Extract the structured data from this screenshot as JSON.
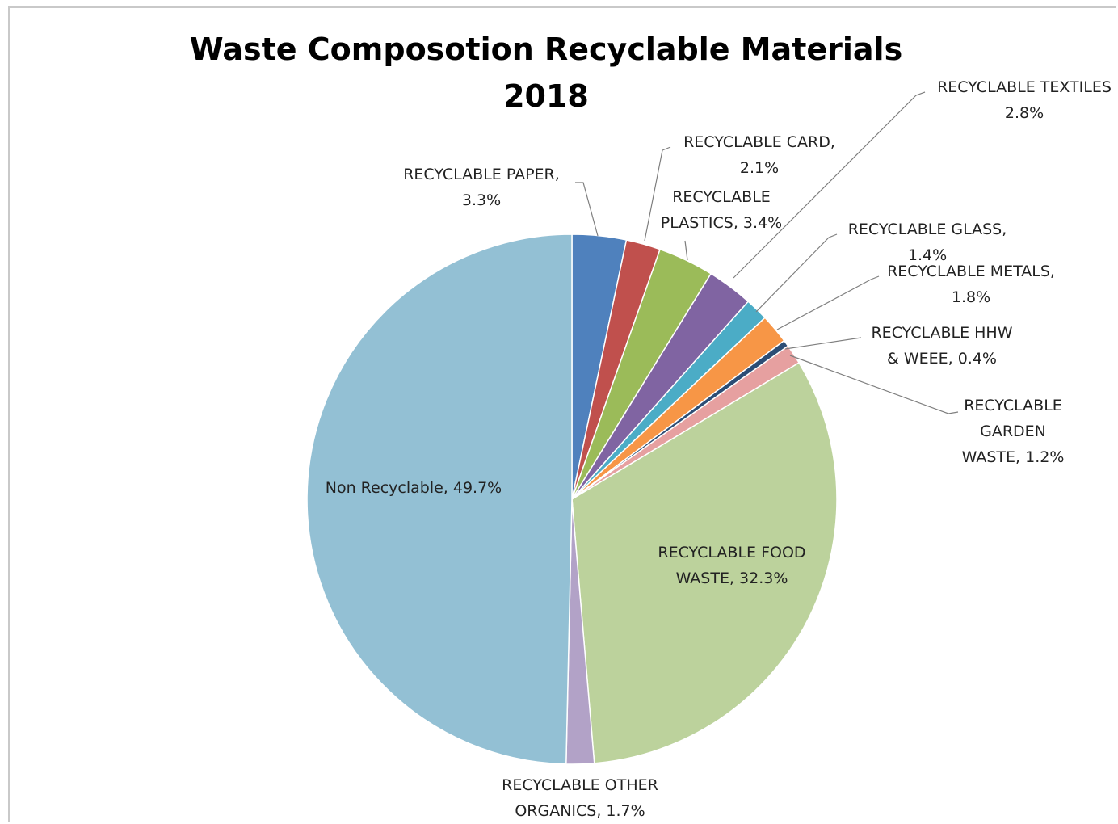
{
  "chart_data": {
    "type": "pie",
    "title": "Waste Composotion Recyclable Materials 2018",
    "title_lines": [
      "Waste Composotion Recyclable Materials",
      "2018"
    ],
    "slices": [
      {
        "name": "RECYCLABLE PAPER",
        "value": 3.3,
        "label_lines": [
          "RECYCLABLE PAPER,",
          "3.3%"
        ],
        "color": "#4f81bd"
      },
      {
        "name": "RECYCLABLE CARD",
        "value": 2.1,
        "label_lines": [
          "RECYCLABLE CARD,",
          "2.1%"
        ],
        "color": "#c0504d"
      },
      {
        "name": "RECYCLABLE PLASTICS",
        "value": 3.4,
        "label_lines": [
          "RECYCLABLE",
          "PLASTICS, 3.4%"
        ],
        "color": "#9bbb59"
      },
      {
        "name": "RECYCLABLE TEXTILES",
        "value": 2.8,
        "label_lines": [
          "RECYCLABLE TEXTILES",
          "2.8%"
        ],
        "color": "#8064a2"
      },
      {
        "name": "RECYCLABLE GLASS",
        "value": 1.4,
        "label_lines": [
          "RECYCLABLE GLASS,",
          "1.4%"
        ],
        "color": "#4bacc6"
      },
      {
        "name": "RECYCLABLE METALS",
        "value": 1.8,
        "label_lines": [
          "RECYCLABLE METALS,",
          "1.8%"
        ],
        "color": "#f79646"
      },
      {
        "name": "RECYCLABLE HHW & WEEE",
        "value": 0.4,
        "label_lines": [
          "RECYCLABLE HHW",
          "& WEEE, 0.4%"
        ],
        "color": "#2c4d75"
      },
      {
        "name": "RECYCLABLE GARDEN WASTE",
        "value": 1.2,
        "label_lines": [
          "RECYCLABLE",
          "GARDEN",
          "WASTE, 1.2%"
        ],
        "color": "#e6a0a0"
      },
      {
        "name": "RECYCLABLE FOOD WASTE",
        "value": 32.3,
        "label_lines": [
          "RECYCLABLE FOOD",
          "WASTE, 32.3%"
        ],
        "color": "#bcd29c"
      },
      {
        "name": "RECYCLABLE OTHER ORGANICS",
        "value": 1.7,
        "label_lines": [
          "RECYCLABLE OTHER",
          "ORGANICS, 1.7%"
        ],
        "color": "#b2a2c7"
      },
      {
        "name": "Non Recyclable",
        "value": 49.7,
        "label_lines": [
          "Non Recyclable, 49.7%"
        ],
        "color": "#93c0d4"
      }
    ],
    "start_angle": "12 o'clock",
    "direction": "clockwise",
    "legend": "none",
    "data_labels": true
  }
}
